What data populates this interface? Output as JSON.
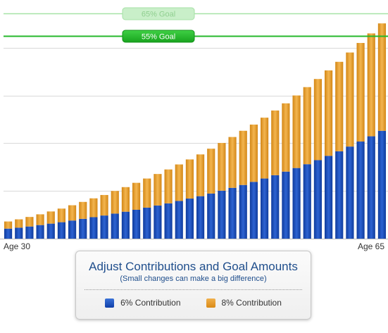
{
  "chart_data": {
    "type": "bar",
    "stacked": true,
    "x_start_label": "Age 30",
    "x_end_label": "Age 65",
    "n_bars": 36,
    "ylim": [
      0,
      100
    ],
    "series": [
      {
        "name": "6% Contribution",
        "color": "#1f4fbf",
        "values": [
          4.2,
          4.6,
          5.1,
          5.7,
          6.3,
          6.9,
          7.6,
          8.3,
          9.0,
          9.7,
          10.5,
          11.3,
          12.1,
          13.0,
          13.9,
          14.8,
          15.8,
          16.8,
          17.8,
          18.9,
          20.1,
          21.3,
          22.5,
          23.8,
          25.2,
          26.6,
          28.1,
          29.6,
          31.2,
          32.9,
          34.7,
          36.6,
          38.6,
          40.7,
          42.9,
          45.2
        ]
      },
      {
        "name": "8% Contribution",
        "color": "#eda43a",
        "values": [
          3.0,
          3.5,
          4.0,
          4.5,
          5.1,
          5.7,
          6.4,
          7.1,
          7.9,
          8.6,
          9.5,
          10.3,
          11.3,
          12.2,
          13.2,
          14.2,
          15.3,
          16.4,
          17.5,
          18.8,
          20.0,
          21.3,
          22.7,
          24.0,
          25.5,
          27.1,
          28.6,
          30.4,
          32.3,
          34.0,
          35.8,
          37.5,
          39.4,
          41.3,
          43.1,
          45.0
        ]
      }
    ],
    "goals": [
      {
        "label": "65% Goal",
        "value": 94.5,
        "color": "#a6e3a6",
        "faded": true
      },
      {
        "label": "55% Goal",
        "value": 85.0,
        "color": "#25b82b",
        "faded": false
      }
    ],
    "grid": true
  },
  "panel": {
    "title": "Adjust Contributions and Goal Amounts",
    "subtitle": "(Small changes can make a big difference)"
  },
  "legend": [
    {
      "label": "6% Contribution",
      "icon": "blue-square-icon"
    },
    {
      "label": "8% Contribution",
      "icon": "orange-square-icon"
    }
  ]
}
